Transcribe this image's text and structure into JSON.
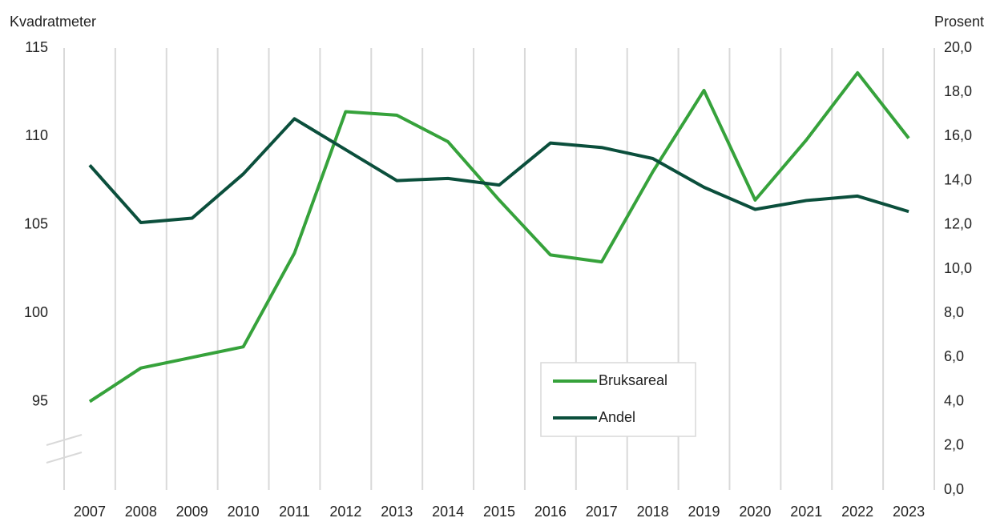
{
  "chart_data": {
    "type": "line",
    "y_label": "Kvadratmeter",
    "y2_label": "Prosent",
    "categories": [
      "2007",
      "2008",
      "2009",
      "2010",
      "2011",
      "2012",
      "2013",
      "2014",
      "2015",
      "2016",
      "2017",
      "2018",
      "2019",
      "2020",
      "2021",
      "2022",
      "2023"
    ],
    "series": [
      {
        "name": "Bruksareal",
        "color": "#36a23b",
        "values": [
          95.0,
          96.9,
          97.5,
          98.1,
          103.4,
          111.4,
          111.2,
          109.7,
          106.4,
          103.3,
          102.9,
          108.0,
          112.6,
          106.4,
          109.8,
          113.6,
          109.9
        ]
      },
      {
        "name": "Andel",
        "color": "#0b4f3c",
        "axis": "y2",
        "values": [
          14.7,
          12.1,
          12.3,
          14.3,
          16.8,
          15.4,
          14.0,
          14.1,
          13.8,
          15.7,
          15.5,
          15.0,
          13.7,
          12.7,
          13.1,
          13.3,
          12.6
        ]
      }
    ],
    "ylim": [
      90,
      115
    ],
    "yticks": [
      95,
      100,
      105,
      110,
      115
    ],
    "y2lim": [
      0,
      20
    ],
    "y2ticks": [
      {
        "value": 0,
        "label": "0,0"
      },
      {
        "value": 2,
        "label": "2,0"
      },
      {
        "value": 4,
        "label": "4,0"
      },
      {
        "value": 6,
        "label": "6,0"
      },
      {
        "value": 8,
        "label": "8,0"
      },
      {
        "value": 10,
        "label": "10,0"
      },
      {
        "value": 12,
        "label": "12,0"
      },
      {
        "value": 14,
        "label": "14,0"
      },
      {
        "value": 16,
        "label": "16,0"
      },
      {
        "value": 18,
        "label": "18,0"
      },
      {
        "value": 20,
        "label": "20,0"
      }
    ],
    "grid": "x",
    "legend": "lower center"
  }
}
